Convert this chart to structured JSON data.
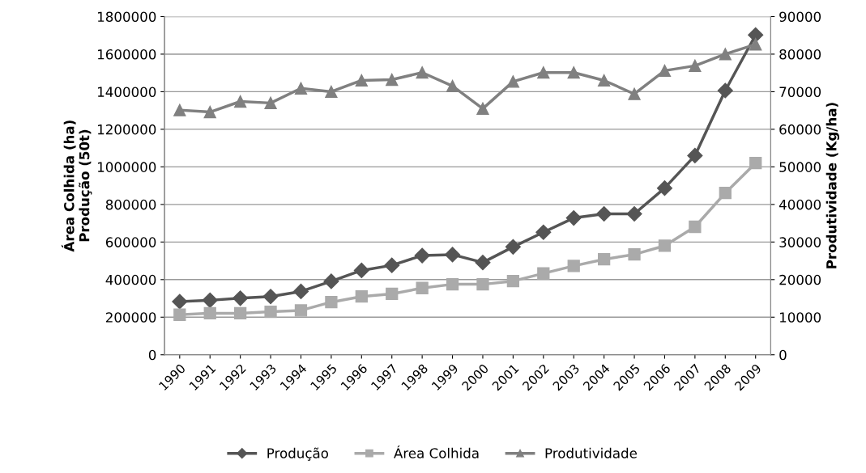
{
  "chart_data": {
    "type": "line",
    "ylabel": "Área Colhida (ha)\nProdução (50t)",
    "y2label": "Produtividade (Kg/ha)",
    "categories": [
      "1990",
      "1991",
      "1992",
      "1993",
      "1994",
      "1995",
      "1996",
      "1997",
      "1998",
      "1999",
      "2000",
      "2001",
      "2002",
      "2003",
      "2004",
      "2005",
      "2006",
      "2007",
      "2008",
      "2009"
    ],
    "series": [
      {
        "name": "Produção",
        "color": "#555555",
        "marker": "diamond",
        "values": [
          283000,
          290000,
          301000,
          310000,
          337000,
          391000,
          449000,
          476000,
          528000,
          533000,
          491000,
          574000,
          652000,
          728000,
          750000,
          750000,
          887000,
          1060000,
          1406000,
          1702000
        ]
      },
      {
        "name": "Área Colhida",
        "color": "#aaaaaa",
        "marker": "square",
        "values": [
          213000,
          221000,
          221000,
          229000,
          236000,
          280000,
          310000,
          324000,
          355000,
          375000,
          375000,
          392000,
          433000,
          473000,
          508000,
          534000,
          580000,
          681000,
          861000,
          1020000
        ]
      },
      {
        "name": "Produtividade",
        "color": "#808080",
        "marker": "triangle",
        "axis": "y2",
        "values": [
          65100,
          64600,
          67400,
          67000,
          70900,
          70000,
          73000,
          73200,
          75100,
          71500,
          65500,
          72700,
          75100,
          75100,
          73000,
          69400,
          75600,
          76900,
          80000,
          82600
        ]
      }
    ],
    "ylim": [
      0,
      1800000
    ],
    "yticks": [
      0,
      200000,
      400000,
      600000,
      800000,
      1000000,
      1200000,
      1400000,
      1600000,
      1800000
    ],
    "y2lim": [
      0,
      90000
    ],
    "y2ticks": [
      0,
      10000,
      20000,
      30000,
      40000,
      50000,
      60000,
      70000,
      80000,
      90000
    ],
    "grid": "y",
    "legend": "bottom"
  }
}
